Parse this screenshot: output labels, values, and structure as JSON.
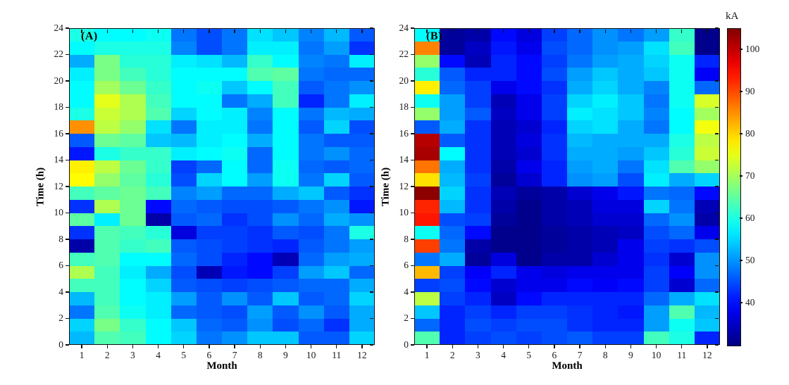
{
  "figure": {
    "colorbar": {
      "label": "kA",
      "ticks": [
        100,
        90,
        80,
        70,
        60,
        50,
        40
      ],
      "vmin": 30,
      "vmax": 105,
      "colormap": "jet"
    }
  },
  "chart_data": [
    {
      "type": "heatmap",
      "panel_label": "(A)",
      "xlabel": "Month",
      "ylabel": "Time (h)",
      "unit": "kA",
      "x_categories": [
        1,
        2,
        3,
        4,
        5,
        6,
        7,
        8,
        9,
        10,
        11,
        12
      ],
      "y_ticks": [
        0,
        2,
        4,
        6,
        8,
        10,
        12,
        14,
        16,
        18,
        20,
        22,
        24
      ],
      "y_range": [
        0,
        24
      ],
      "value_range": [
        30,
        105
      ],
      "row_order_note": "rows top-to-bottom = hour bin 23-24h down to 0-1h; columns = months 1-12",
      "values": [
        [
          60,
          58,
          58,
          59,
          48,
          45,
          48,
          56,
          54,
          49,
          53,
          46
        ],
        [
          58,
          60,
          60,
          60,
          49,
          45,
          48,
          57,
          57,
          48,
          51,
          43
        ],
        [
          52,
          67,
          61,
          61,
          57,
          56,
          53,
          62,
          58,
          49,
          48,
          57
        ],
        [
          57,
          67,
          63,
          61,
          58,
          58,
          58,
          64,
          65,
          48,
          47,
          47
        ],
        [
          58,
          70,
          66,
          62,
          58,
          59,
          54,
          58,
          63,
          46,
          48,
          50
        ],
        [
          58,
          75,
          71,
          63,
          58,
          58,
          48,
          52,
          63,
          42,
          48,
          57
        ],
        [
          60,
          73,
          71,
          64,
          55,
          58,
          57,
          49,
          58,
          48,
          53,
          52
        ],
        [
          85,
          72,
          69,
          56,
          48,
          57,
          57,
          48,
          58,
          46,
          55,
          45
        ],
        [
          46,
          66,
          65,
          54,
          53,
          57,
          58,
          52,
          58,
          48,
          46,
          46
        ],
        [
          41,
          60,
          62,
          62,
          57,
          58,
          59,
          47,
          58,
          48,
          50,
          47
        ],
        [
          78,
          72,
          66,
          62,
          44,
          47,
          58,
          47,
          59,
          47,
          46,
          47
        ],
        [
          77,
          69,
          65,
          61,
          45,
          55,
          58,
          51,
          59,
          48,
          55,
          46
        ],
        [
          63,
          65,
          66,
          63,
          49,
          51,
          47,
          47,
          52,
          54,
          46,
          43
        ],
        [
          43,
          71,
          66,
          40,
          47,
          46,
          45,
          45,
          46,
          48,
          50,
          41
        ],
        [
          65,
          57,
          66,
          33,
          46,
          47,
          43,
          45,
          50,
          47,
          52,
          50
        ],
        [
          43,
          64,
          63,
          61,
          37,
          44,
          44,
          43,
          46,
          45,
          48,
          60
        ],
        [
          33,
          64,
          62,
          63,
          46,
          45,
          44,
          43,
          42,
          46,
          48,
          51
        ],
        [
          63,
          64,
          58,
          58,
          47,
          45,
          42,
          40,
          34,
          47,
          51,
          52
        ],
        [
          71,
          63,
          57,
          52,
          45,
          34,
          41,
          40,
          44,
          51,
          54,
          47
        ],
        [
          63,
          63,
          58,
          55,
          46,
          45,
          44,
          45,
          46,
          47,
          47,
          52
        ],
        [
          53,
          63,
          58,
          57,
          51,
          46,
          50,
          46,
          54,
          46,
          47,
          55
        ],
        [
          48,
          64,
          59,
          57,
          47,
          46,
          45,
          51,
          46,
          50,
          46,
          52
        ],
        [
          55,
          67,
          62,
          58,
          54,
          47,
          46,
          50,
          45,
          47,
          43,
          52
        ],
        [
          53,
          64,
          63,
          58,
          55,
          48,
          50,
          54,
          54,
          46,
          46,
          55
        ]
      ]
    },
    {
      "type": "heatmap",
      "panel_label": "(B)",
      "xlabel": "Month",
      "ylabel": "Time (h)",
      "unit": "kA",
      "x_categories": [
        1,
        2,
        3,
        4,
        5,
        6,
        7,
        8,
        9,
        10,
        11,
        12
      ],
      "y_ticks": [
        0,
        2,
        4,
        6,
        8,
        10,
        12,
        14,
        16,
        18,
        20,
        22,
        24
      ],
      "y_range": [
        0,
        24
      ],
      "value_range": [
        30,
        105
      ],
      "row_order_note": "rows top-to-bottom = hour bin 23-24h down to 0-1h; columns = months 1-12",
      "values": [
        [
          58,
          32,
          33,
          40,
          37,
          44,
          47,
          50,
          48,
          51,
          62,
          31
        ],
        [
          86,
          32,
          35,
          41,
          38,
          45,
          47,
          50,
          51,
          56,
          63,
          31
        ],
        [
          69,
          40,
          34,
          42,
          40,
          44,
          48,
          51,
          52,
          55,
          59,
          42
        ],
        [
          61,
          46,
          42,
          42,
          40,
          45,
          51,
          54,
          52,
          54,
          59,
          39
        ],
        [
          78,
          47,
          44,
          38,
          40,
          43,
          52,
          55,
          52,
          49,
          59,
          47
        ],
        [
          59,
          51,
          44,
          34,
          38,
          44,
          55,
          57,
          54,
          48,
          59,
          74
        ],
        [
          69,
          51,
          46,
          35,
          38,
          44,
          57,
          56,
          54,
          49,
          58,
          70
        ],
        [
          46,
          52,
          43,
          34,
          36,
          42,
          55,
          56,
          52,
          48,
          58,
          76
        ],
        [
          101,
          46,
          43,
          34,
          37,
          43,
          53,
          52,
          52,
          52,
          60,
          72
        ],
        [
          102,
          58,
          43,
          34,
          36,
          43,
          52,
          52,
          51,
          54,
          61,
          73
        ],
        [
          87,
          52,
          43,
          33,
          38,
          42,
          51,
          52,
          48,
          56,
          64,
          69
        ],
        [
          79,
          53,
          44,
          32,
          36,
          42,
          50,
          51,
          45,
          57,
          52,
          55
        ],
        [
          104,
          55,
          43,
          34,
          32,
          33,
          36,
          38,
          41,
          48,
          47,
          40
        ],
        [
          93,
          53,
          43,
          33,
          31,
          33,
          34,
          37,
          37,
          55,
          48,
          34
        ],
        [
          94,
          45,
          44,
          32,
          31,
          33,
          34,
          36,
          36,
          47,
          50,
          33
        ],
        [
          59,
          47,
          40,
          31,
          31,
          32,
          33,
          34,
          35,
          45,
          47,
          38
        ],
        [
          91,
          48,
          33,
          31,
          31,
          32,
          33,
          34,
          38,
          44,
          43,
          45
        ],
        [
          48,
          52,
          32,
          37,
          31,
          33,
          33,
          36,
          38,
          43,
          36,
          50
        ],
        [
          82,
          44,
          39,
          42,
          38,
          37,
          38,
          38,
          38,
          44,
          39,
          50
        ],
        [
          44,
          45,
          40,
          36,
          38,
          38,
          40,
          39,
          40,
          44,
          36,
          47
        ],
        [
          72,
          44,
          42,
          35,
          40,
          42,
          42,
          42,
          42,
          47,
          52,
          56
        ],
        [
          54,
          42,
          44,
          42,
          44,
          44,
          43,
          42,
          41,
          51,
          64,
          53
        ],
        [
          47,
          42,
          45,
          44,
          45,
          45,
          43,
          42,
          42,
          51,
          59,
          54
        ],
        [
          64,
          42,
          44,
          45,
          44,
          45,
          46,
          44,
          44,
          63,
          60,
          42
        ]
      ]
    }
  ]
}
